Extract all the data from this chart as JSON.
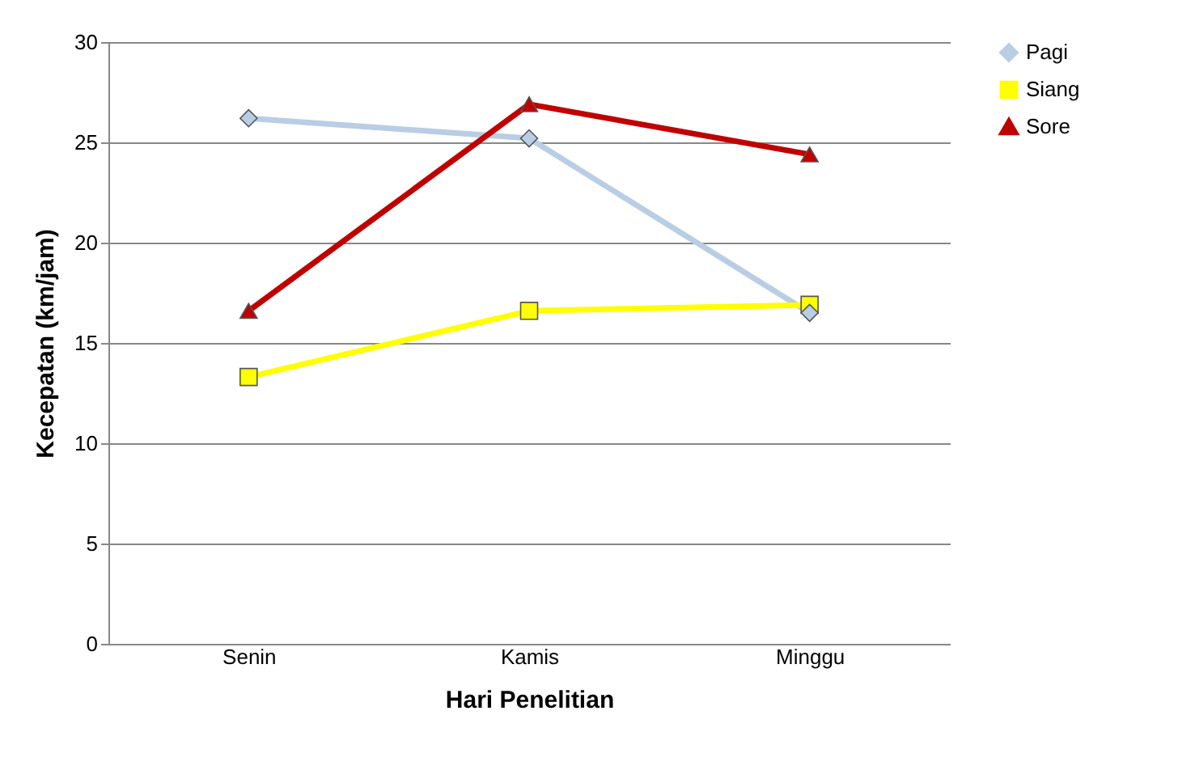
{
  "chart_data": {
    "type": "line",
    "xlabel": "Hari Penelitian",
    "ylabel": "Kecepatan (km/jam)",
    "categories": [
      "Senin",
      "Kamis",
      "Minggu"
    ],
    "series": [
      {
        "name": "Pagi",
        "color": "#b9cde5",
        "marker": "diamond",
        "values": [
          26.2,
          25.2,
          16.5
        ]
      },
      {
        "name": "Siang",
        "color": "#ffff00",
        "marker": "square",
        "values": [
          13.3,
          16.6,
          16.9
        ]
      },
      {
        "name": "Sore",
        "color": "#c00000",
        "marker": "triangle",
        "values": [
          16.6,
          26.9,
          24.4
        ]
      }
    ],
    "ylim": [
      0,
      30
    ],
    "yticks": [
      0,
      5,
      10,
      15,
      20,
      25,
      30
    ],
    "grid": "y",
    "legend": "right",
    "line_style": "solid"
  }
}
